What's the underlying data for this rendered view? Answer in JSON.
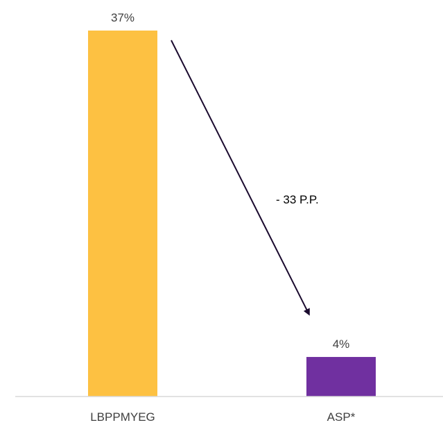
{
  "chart_data": {
    "type": "bar",
    "categories": [
      "LBPPMYEG",
      "ASP*"
    ],
    "values": [
      37,
      4
    ],
    "data_labels": [
      "37%",
      "4%"
    ],
    "colors": [
      "#FDC142",
      "#7030A0"
    ],
    "ylim": [
      0,
      37
    ],
    "title": "",
    "xlabel": "",
    "ylabel": "",
    "grid": false,
    "annotation": {
      "text": "- 33 P.P.",
      "from_category": "LBPPMYEG",
      "to_category": "ASP*",
      "color": "#1a0a2e"
    }
  }
}
